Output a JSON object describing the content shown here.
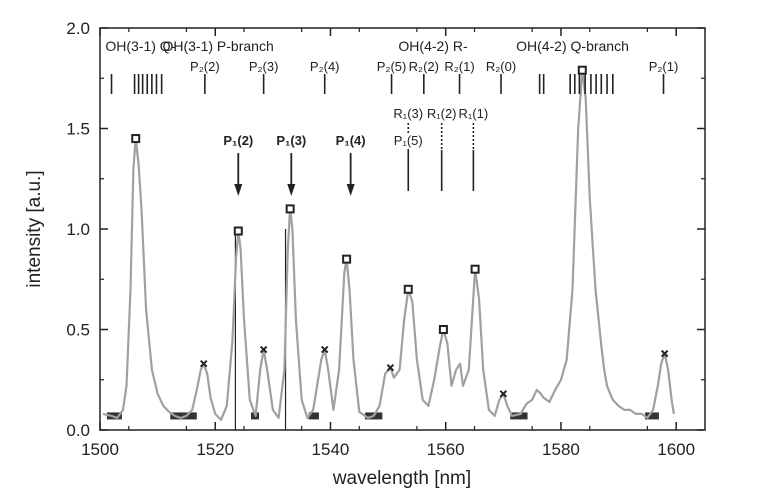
{
  "chart_data": {
    "type": "line",
    "xlabel": "wavelength [nm]",
    "ylabel": "intensity [a.u.]",
    "xlim": [
      1500,
      1605
    ],
    "ylim": [
      0,
      2.0
    ],
    "x_ticks": [
      "1500",
      "1520",
      "1540",
      "1560",
      "1580",
      "1600"
    ],
    "y_ticks": [
      "0.0",
      "0.5",
      "1.0",
      "1.5",
      "2.0"
    ],
    "grid": false,
    "colors": {
      "spectrum": "#a0a0a0",
      "axis": "#222222",
      "marker": "#222222",
      "background_bar": "#333333"
    },
    "series": [
      {
        "x": [
          1500.5,
          1502,
          1503,
          1504,
          1504.6,
          1505.3,
          1505.8,
          1506.2,
          1506.7,
          1507.2,
          1508,
          1509,
          1510,
          1511,
          1512,
          1513,
          1514,
          1515,
          1516,
          1516.8,
          1517.5,
          1518,
          1518.6,
          1519.2,
          1520,
          1521,
          1522,
          1523,
          1523.6,
          1524,
          1524.4,
          1525,
          1526,
          1527,
          1527.8,
          1528.4,
          1529,
          1530,
          1531,
          1532,
          1532.6,
          1533,
          1533.4,
          1534,
          1535,
          1536,
          1537,
          1538.4,
          1539,
          1539.6,
          1540.5,
          1541.5,
          1542.4,
          1542.8,
          1543.3,
          1544,
          1545,
          1546.5,
          1547.5,
          1548.5,
          1549.5,
          1550.4,
          1551,
          1552,
          1552.8,
          1553.5,
          1554.2,
          1555,
          1556,
          1557,
          1558,
          1559,
          1559.6,
          1560.3,
          1561,
          1561.8,
          1562.5,
          1563,
          1564,
          1565.1,
          1565.8,
          1566.5,
          1567.5,
          1568.5,
          1569.3,
          1570,
          1570.7,
          1571.5,
          1573,
          1574,
          1575,
          1575.8,
          1576.5,
          1577,
          1578,
          1579,
          1580,
          1581,
          1582,
          1583,
          1583.7,
          1584.3,
          1585,
          1586,
          1587,
          1587.5,
          1588,
          1589,
          1590,
          1591,
          1592,
          1593,
          1594,
          1595,
          1596,
          1596.8,
          1597.4,
          1598,
          1598.6,
          1599.2,
          1599.6
        ],
        "values": [
          0.08,
          0.07,
          0.06,
          0.1,
          0.22,
          0.7,
          1.3,
          1.45,
          1.32,
          1.1,
          0.6,
          0.3,
          0.18,
          0.12,
          0.09,
          0.07,
          0.06,
          0.07,
          0.1,
          0.2,
          0.3,
          0.33,
          0.28,
          0.16,
          0.08,
          0.05,
          0.12,
          0.45,
          0.85,
          0.99,
          0.9,
          0.55,
          0.15,
          0.07,
          0.3,
          0.4,
          0.3,
          0.1,
          0.06,
          0.3,
          0.9,
          1.1,
          1.0,
          0.55,
          0.15,
          0.06,
          0.1,
          0.35,
          0.4,
          0.3,
          0.1,
          0.3,
          0.78,
          0.85,
          0.7,
          0.35,
          0.09,
          0.06,
          0.07,
          0.12,
          0.28,
          0.31,
          0.26,
          0.3,
          0.55,
          0.7,
          0.64,
          0.35,
          0.15,
          0.12,
          0.25,
          0.42,
          0.5,
          0.43,
          0.22,
          0.3,
          0.33,
          0.22,
          0.3,
          0.8,
          0.65,
          0.3,
          0.1,
          0.07,
          0.15,
          0.18,
          0.12,
          0.07,
          0.08,
          0.13,
          0.15,
          0.2,
          0.18,
          0.16,
          0.14,
          0.2,
          0.25,
          0.35,
          0.7,
          1.5,
          1.79,
          1.65,
          1.15,
          0.7,
          0.42,
          0.3,
          0.22,
          0.15,
          0.12,
          0.1,
          0.1,
          0.08,
          0.08,
          0.06,
          0.1,
          0.22,
          0.33,
          0.38,
          0.3,
          0.15,
          0.08
        ]
      }
    ],
    "square_markers": [
      {
        "x": 1506.2,
        "y": 1.45
      },
      {
        "x": 1524,
        "y": 0.99
      },
      {
        "x": 1533,
        "y": 1.1
      },
      {
        "x": 1542.8,
        "y": 0.85
      },
      {
        "x": 1553.5,
        "y": 0.7
      },
      {
        "x": 1559.6,
        "y": 0.5
      },
      {
        "x": 1565.1,
        "y": 0.8
      },
      {
        "x": 1583.7,
        "y": 1.79
      }
    ],
    "cross_markers": [
      {
        "x": 1518,
        "y": 0.33
      },
      {
        "x": 1528.4,
        "y": 0.4
      },
      {
        "x": 1539,
        "y": 0.4
      },
      {
        "x": 1550.4,
        "y": 0.31
      },
      {
        "x": 1570,
        "y": 0.18
      },
      {
        "x": 1598,
        "y": 0.38
      }
    ],
    "background_regions": [
      [
        1501.2,
        1503.8
      ],
      [
        1512.2,
        1516.8
      ],
      [
        1526.2,
        1527.6
      ],
      [
        1536.2,
        1538
      ],
      [
        1546,
        1549
      ],
      [
        1571.2,
        1574.2
      ],
      [
        1594.6,
        1597
      ]
    ],
    "vertical_lines": [
      1523.5,
      1532.2
    ],
    "branch_labels": [
      "OH(3-1) Q-",
      "OH(3-1) P-branch",
      "OH(4-2) R-",
      "OH(4-2) Q-branch"
    ],
    "tick_groups": [
      {
        "x": 1502
      },
      {
        "x": 1506
      },
      {
        "x": 1506.7
      },
      {
        "x": 1507.4
      },
      {
        "x": 1508.2
      },
      {
        "x": 1509
      },
      {
        "x": 1509.8
      },
      {
        "x": 1510.7
      },
      {
        "x": 1518.2,
        "label": "P₂(2)"
      },
      {
        "x": 1528.4,
        "label": "P₂(3)"
      },
      {
        "x": 1539,
        "label": "P₂(4)"
      },
      {
        "x": 1550.6,
        "label": "P₂(5)"
      },
      {
        "x": 1556.2,
        "label": "R₂(2)"
      },
      {
        "x": 1562.4,
        "label": "R₂(1)"
      },
      {
        "x": 1569.6,
        "label": "R₂(0)"
      },
      {
        "x": 1576.3
      },
      {
        "x": 1577
      },
      {
        "x": 1581.6
      },
      {
        "x": 1582.4
      },
      {
        "x": 1583.2
      },
      {
        "x": 1584.2
      },
      {
        "x": 1585.2
      },
      {
        "x": 1586.1
      },
      {
        "x": 1587
      },
      {
        "x": 1588
      },
      {
        "x": 1589
      },
      {
        "x": 1597.8,
        "label": "P₂(1)"
      }
    ],
    "arrows": [
      {
        "x": 1524,
        "label": "P₁(2)"
      },
      {
        "x": 1533.2,
        "label": "P₁(3)"
      },
      {
        "x": 1543.5,
        "label": "P₁(4)"
      }
    ],
    "r1_lines": [
      {
        "x": 1553.5,
        "labels": [
          "R₁(3)",
          "P₁(5)"
        ]
      },
      {
        "x": 1559.3,
        "labels": [
          "R₁(2)"
        ]
      },
      {
        "x": 1564.8,
        "labels": [
          "R₁(1)"
        ]
      }
    ]
  }
}
